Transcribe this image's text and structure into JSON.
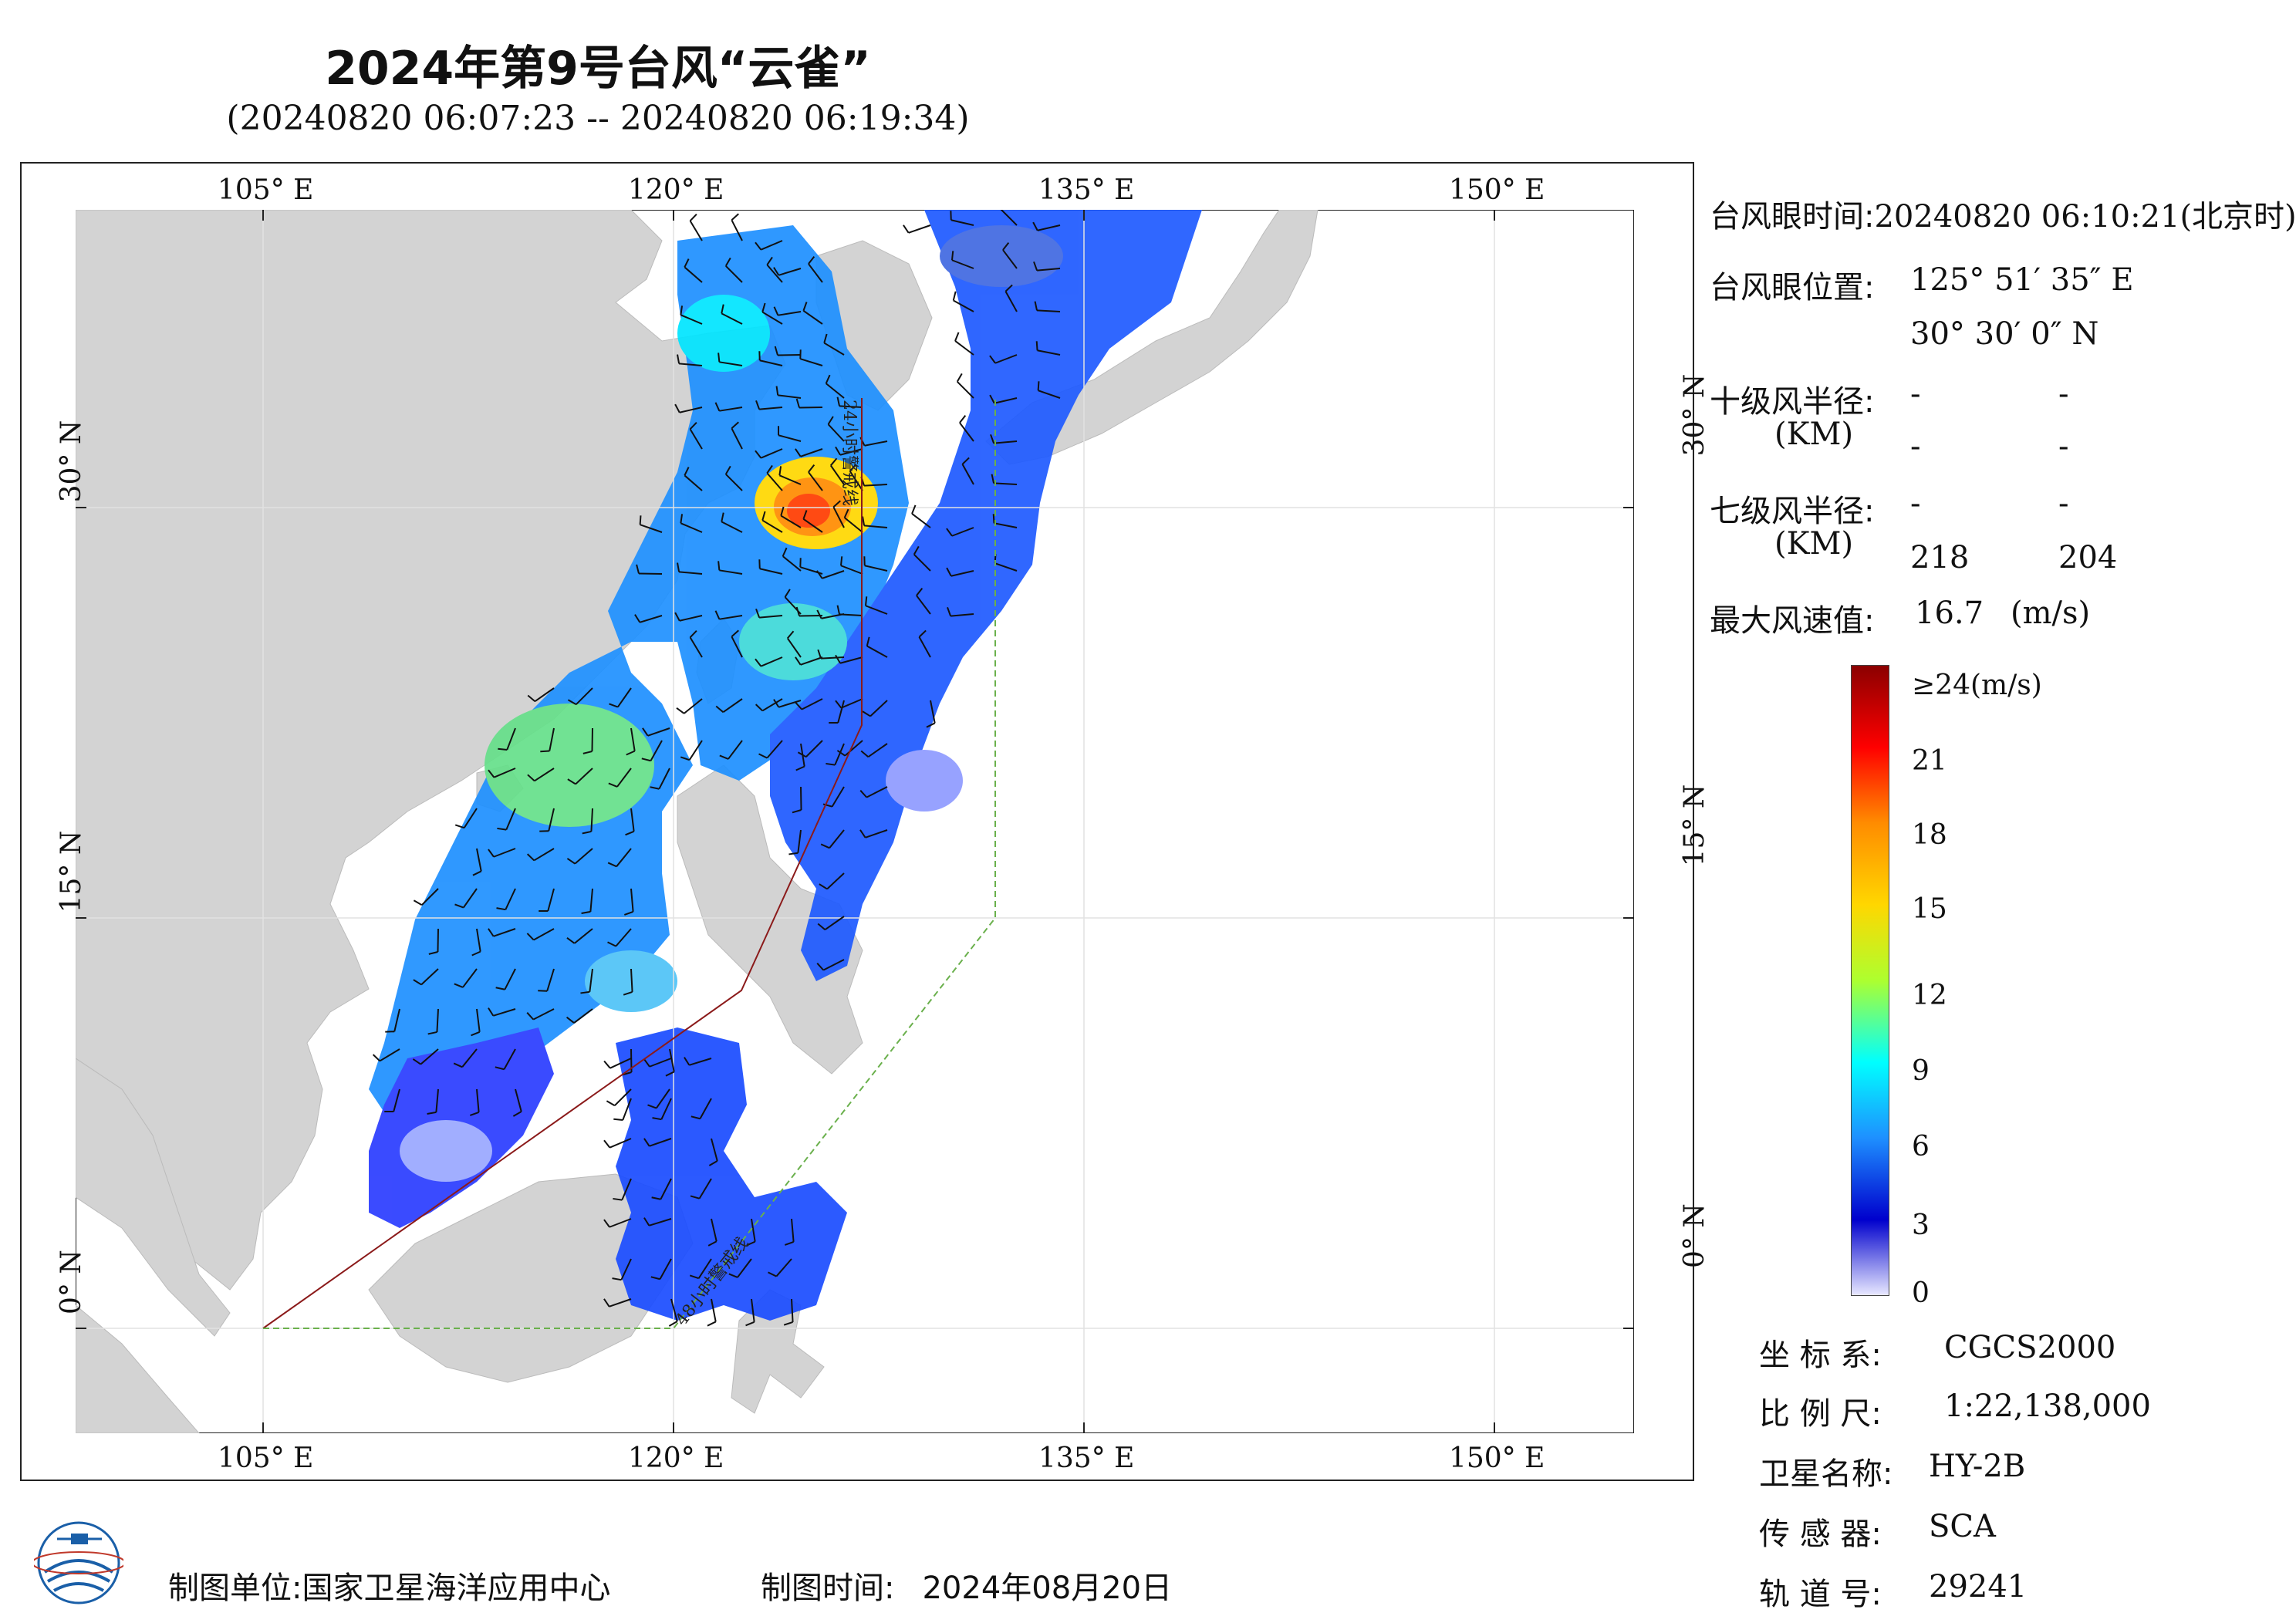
{
  "title": "2024年第9号台风“云雀”",
  "subtitle": "(20240820 06:07:23 -- 20240820 06:19:34)",
  "map": {
    "lon_ticks": [
      "105° E",
      "120° E",
      "135° E",
      "150° E"
    ],
    "lat_ticks": [
      "30° N",
      "15° N",
      "0° N"
    ],
    "forecast_24h_label": "24小时警戒线",
    "forecast_48h_label": "48小时警戒线",
    "colors": {
      "land": "#d3d3d3",
      "warning_24h": "#8b1a1a",
      "warning_48h": "#6ab04c",
      "ocean": "#ffffff"
    }
  },
  "info": {
    "eye_time_label": "台风眼时间:",
    "eye_time_value": "20240820 06:10:21(北京时)",
    "eye_position_label": "台风眼位置:",
    "eye_lon": "125° 51′ 35″ E",
    "eye_lat": "30° 30′ 0″ N",
    "r10_label": "十级风半径:",
    "r10_unit": "(KM)",
    "r10_values": [
      "-",
      "-",
      "-",
      "-"
    ],
    "r7_label": "七级风半径:",
    "r7_unit": "(KM)",
    "r7_values": [
      "-",
      "-",
      "218",
      "204"
    ],
    "max_wind_label": "最大风速值:",
    "max_wind_value": "16.7",
    "max_wind_unit": "(m/s)"
  },
  "legend": {
    "ticks": [
      "≥24(m/s)",
      "21",
      "18",
      "15",
      "12",
      "9",
      "6",
      "3",
      "0"
    ],
    "colors": [
      "#8b0000",
      "#ff0000",
      "#ff8c00",
      "#ffd700",
      "#adff2f",
      "#00ffff",
      "#1e90ff",
      "#0000cd",
      "#e8e8ff"
    ]
  },
  "meta": {
    "crs_label": "坐 标 系:",
    "crs_value": "CGCS2000",
    "scale_label": "比 例 尺:",
    "scale_value": "1:22,138,000",
    "satellite_label": "卫星名称:",
    "satellite_value": "HY-2B",
    "sensor_label": "传 感 器:",
    "sensor_value": "SCA",
    "orbit_label": "轨 道 号:",
    "orbit_value": "29241"
  },
  "footer": {
    "unit_label": "制图单位:",
    "unit_value": "国家卫星海洋应用中心",
    "date_label": "制图时间:",
    "date_value": "2024年08月20日"
  }
}
